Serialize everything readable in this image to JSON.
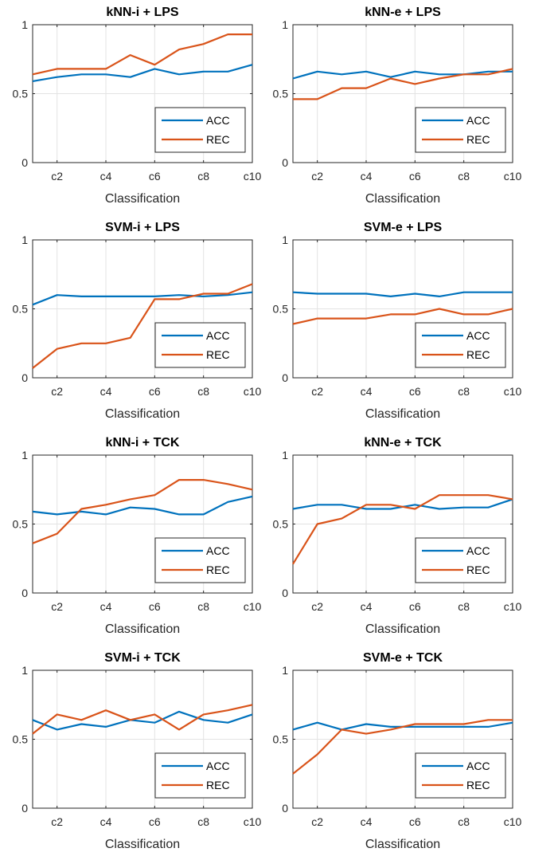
{
  "colors": {
    "acc": "#0072BD",
    "rec": "#D95319",
    "grid": "#e3e3e3",
    "axis": "#262626"
  },
  "chart_data": [
    {
      "type": "line",
      "title": "kNN-i + LPS",
      "xlabel": "Classification",
      "ylabel": "",
      "ylim": [
        0,
        1
      ],
      "yticks": [
        "0",
        "0.5",
        "1"
      ],
      "x": [
        "c1",
        "c2",
        "c3",
        "c4",
        "c5",
        "c6",
        "c7",
        "c8",
        "c9",
        "c10"
      ],
      "xtick_labels": [
        "c2",
        "c4",
        "c6",
        "c8",
        "c10"
      ],
      "grid": true,
      "legend_position": "bottom-right",
      "series": [
        {
          "name": "ACC",
          "values": [
            0.59,
            0.62,
            0.64,
            0.64,
            0.62,
            0.68,
            0.64,
            0.66,
            0.66,
            0.71
          ]
        },
        {
          "name": "REC",
          "values": [
            0.64,
            0.68,
            0.68,
            0.68,
            0.78,
            0.71,
            0.82,
            0.86,
            0.93,
            0.93
          ]
        }
      ]
    },
    {
      "type": "line",
      "title": "kNN-e + LPS",
      "xlabel": "Classification",
      "ylabel": "",
      "ylim": [
        0,
        1
      ],
      "yticks": [
        "0",
        "0.5",
        "1"
      ],
      "x": [
        "c1",
        "c2",
        "c3",
        "c4",
        "c5",
        "c6",
        "c7",
        "c8",
        "c9",
        "c10"
      ],
      "xtick_labels": [
        "c2",
        "c4",
        "c6",
        "c8",
        "c10"
      ],
      "grid": true,
      "legend_position": "bottom-right",
      "series": [
        {
          "name": "ACC",
          "values": [
            0.61,
            0.66,
            0.64,
            0.66,
            0.62,
            0.66,
            0.64,
            0.64,
            0.66,
            0.66
          ]
        },
        {
          "name": "REC",
          "values": [
            0.46,
            0.46,
            0.54,
            0.54,
            0.61,
            0.57,
            0.61,
            0.64,
            0.64,
            0.68
          ]
        }
      ]
    },
    {
      "type": "line",
      "title": "SVM-i + LPS",
      "xlabel": "Classification",
      "ylabel": "",
      "ylim": [
        0,
        1
      ],
      "yticks": [
        "0",
        "0.5",
        "1"
      ],
      "x": [
        "c1",
        "c2",
        "c3",
        "c4",
        "c5",
        "c6",
        "c7",
        "c8",
        "c9",
        "c10"
      ],
      "xtick_labels": [
        "c2",
        "c4",
        "c6",
        "c8",
        "c10"
      ],
      "grid": true,
      "legend_position": "bottom-right",
      "series": [
        {
          "name": "ACC",
          "values": [
            0.53,
            0.6,
            0.59,
            0.59,
            0.59,
            0.59,
            0.6,
            0.59,
            0.6,
            0.62
          ]
        },
        {
          "name": "REC",
          "values": [
            0.07,
            0.21,
            0.25,
            0.25,
            0.29,
            0.57,
            0.57,
            0.61,
            0.61,
            0.68
          ]
        }
      ]
    },
    {
      "type": "line",
      "title": "SVM-e + LPS",
      "xlabel": "Classification",
      "ylabel": "",
      "ylim": [
        0,
        1
      ],
      "yticks": [
        "0",
        "0.5",
        "1"
      ],
      "x": [
        "c1",
        "c2",
        "c3",
        "c4",
        "c5",
        "c6",
        "c7",
        "c8",
        "c9",
        "c10"
      ],
      "xtick_labels": [
        "c2",
        "c4",
        "c6",
        "c8",
        "c10"
      ],
      "grid": true,
      "legend_position": "bottom-right",
      "series": [
        {
          "name": "ACC",
          "values": [
            0.62,
            0.61,
            0.61,
            0.61,
            0.59,
            0.61,
            0.59,
            0.62,
            0.62,
            0.62
          ]
        },
        {
          "name": "REC",
          "values": [
            0.39,
            0.43,
            0.43,
            0.43,
            0.46,
            0.46,
            0.5,
            0.46,
            0.46,
            0.5
          ]
        }
      ]
    },
    {
      "type": "line",
      "title": "kNN-i + TCK",
      "xlabel": "Classification",
      "ylabel": "",
      "ylim": [
        0,
        1
      ],
      "yticks": [
        "0",
        "0.5",
        "1"
      ],
      "x": [
        "c1",
        "c2",
        "c3",
        "c4",
        "c5",
        "c6",
        "c7",
        "c8",
        "c9",
        "c10"
      ],
      "xtick_labels": [
        "c2",
        "c4",
        "c6",
        "c8",
        "c10"
      ],
      "grid": true,
      "legend_position": "bottom-right",
      "series": [
        {
          "name": "ACC",
          "values": [
            0.59,
            0.57,
            0.59,
            0.57,
            0.62,
            0.61,
            0.57,
            0.57,
            0.66,
            0.7
          ]
        },
        {
          "name": "REC",
          "values": [
            0.36,
            0.43,
            0.61,
            0.64,
            0.68,
            0.71,
            0.82,
            0.82,
            0.79,
            0.75
          ]
        }
      ]
    },
    {
      "type": "line",
      "title": "kNN-e + TCK",
      "xlabel": "Classification",
      "ylabel": "",
      "ylim": [
        0,
        1
      ],
      "yticks": [
        "0",
        "0.5",
        "1"
      ],
      "x": [
        "c1",
        "c2",
        "c3",
        "c4",
        "c5",
        "c6",
        "c7",
        "c8",
        "c9",
        "c10"
      ],
      "xtick_labels": [
        "c2",
        "c4",
        "c6",
        "c8",
        "c10"
      ],
      "grid": true,
      "legend_position": "bottom-right",
      "series": [
        {
          "name": "ACC",
          "values": [
            0.61,
            0.64,
            0.64,
            0.61,
            0.61,
            0.64,
            0.61,
            0.62,
            0.62,
            0.68
          ]
        },
        {
          "name": "REC",
          "values": [
            0.21,
            0.5,
            0.54,
            0.64,
            0.64,
            0.61,
            0.71,
            0.71,
            0.71,
            0.68
          ]
        }
      ]
    },
    {
      "type": "line",
      "title": "SVM-i + TCK",
      "xlabel": "Classification",
      "ylabel": "",
      "ylim": [
        0,
        1
      ],
      "yticks": [
        "0",
        "0.5",
        "1"
      ],
      "x": [
        "c1",
        "c2",
        "c3",
        "c4",
        "c5",
        "c6",
        "c7",
        "c8",
        "c9",
        "c10"
      ],
      "xtick_labels": [
        "c2",
        "c4",
        "c6",
        "c8",
        "c10"
      ],
      "grid": true,
      "legend_position": "bottom-right",
      "series": [
        {
          "name": "ACC",
          "values": [
            0.64,
            0.57,
            0.61,
            0.59,
            0.64,
            0.62,
            0.7,
            0.64,
            0.62,
            0.68
          ]
        },
        {
          "name": "REC",
          "values": [
            0.54,
            0.68,
            0.64,
            0.71,
            0.64,
            0.68,
            0.57,
            0.68,
            0.71,
            0.75
          ]
        }
      ]
    },
    {
      "type": "line",
      "title": "SVM-e + TCK",
      "xlabel": "Classification",
      "ylabel": "",
      "ylim": [
        0,
        1
      ],
      "yticks": [
        "0",
        "0.5",
        "1"
      ],
      "x": [
        "c1",
        "c2",
        "c3",
        "c4",
        "c5",
        "c6",
        "c7",
        "c8",
        "c9",
        "c10"
      ],
      "xtick_labels": [
        "c2",
        "c4",
        "c6",
        "c8",
        "c10"
      ],
      "grid": true,
      "legend_position": "bottom-right",
      "series": [
        {
          "name": "ACC",
          "values": [
            0.57,
            0.62,
            0.57,
            0.61,
            0.59,
            0.59,
            0.59,
            0.59,
            0.59,
            0.62
          ]
        },
        {
          "name": "REC",
          "values": [
            0.25,
            0.39,
            0.57,
            0.54,
            0.57,
            0.61,
            0.61,
            0.61,
            0.64,
            0.64
          ]
        }
      ]
    }
  ]
}
